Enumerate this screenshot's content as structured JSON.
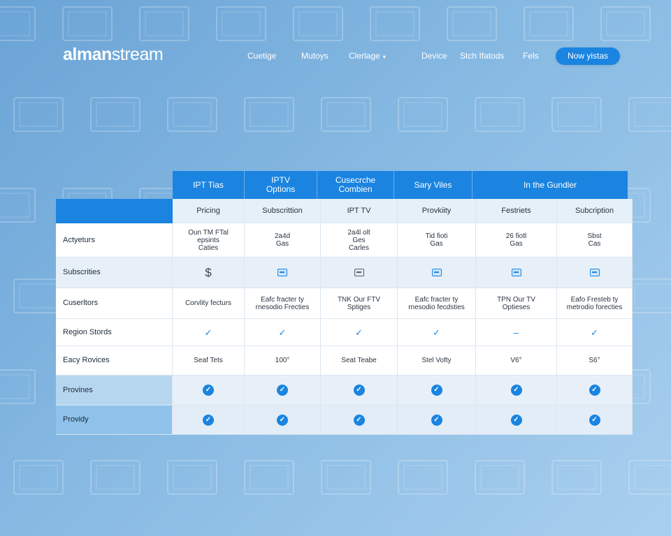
{
  "brand": {
    "logo_bold": "alman",
    "logo_light": "stream"
  },
  "nav": {
    "items": [
      {
        "label": "Cuetige"
      },
      {
        "label": "Mutoys"
      },
      {
        "label": "Clerlage",
        "chevron": "▾"
      },
      {
        "label": "Device"
      },
      {
        "label": "Stch Ifatods"
      },
      {
        "label": "Fels"
      }
    ],
    "cta": "Now yistas"
  },
  "table": {
    "top_headers": [
      "IPT Tias",
      "IPTV\nOptions",
      "Cusecrche\nCombien",
      "Sary Viles",
      "In the Gundler"
    ],
    "columns": [
      "Pricing",
      "Subscrittion",
      "IPT TV",
      "Provkiity",
      "Festriets",
      "Subcription"
    ],
    "rows": [
      {
        "label": "Actyeturs",
        "cells": [
          "Oun TM FTal\nepsints\nCaties",
          "2a4d\nGas",
          "2a4l olt\nGes\nCarles",
          "Tid fioti\nGas",
          "26 fiotl\nGas",
          "Sbst\nCas"
        ]
      },
      {
        "label": "Subscrities",
        "cells": [
          "$",
          "card-icon",
          "card-icon-grey",
          "card-icon",
          "card-icon",
          "card-icon"
        ]
      },
      {
        "label": "Cuserltors",
        "cells": [
          "Corvlity fecturs",
          "Eafc fracter ty\nrnesodio Frecties",
          "TNK Our FTV\nSptiges",
          "Eafc fracter ty\nrnesodio fecdsties",
          "TPN Our TV\nOptieses",
          "Eafo Fresteb ty\nmetrodio forecties"
        ]
      },
      {
        "label": "Region Stords",
        "cells": [
          "✓",
          "✓",
          "✓",
          "✓",
          "–",
          "✓"
        ]
      },
      {
        "label": "Eacy Rovices",
        "cells": [
          "Seaf Tets",
          "100°",
          "Seat Teabe",
          "Stel Vofty",
          "V6°",
          "S6°"
        ]
      },
      {
        "label": "Provines",
        "cells": [
          "check",
          "check",
          "check",
          "check",
          "check",
          "check"
        ]
      },
      {
        "label": "Providy",
        "cells": [
          "check",
          "check",
          "check",
          "check",
          "check",
          "check"
        ]
      }
    ]
  },
  "icons": {
    "price": "dollar-icon",
    "subscription": "credit-card-icon",
    "available": "checkmark-icon",
    "included": "check-circle-icon",
    "not_available": "dash-icon",
    "background": "tv-screen-icon"
  },
  "colors": {
    "accent": "#1a84e0",
    "background_start": "#6aa3d6",
    "background_end": "#a9cfee",
    "row_tint": "#e6f0f9",
    "label_highlight_1": "#b6d6f0",
    "label_highlight_2": "#8fc2ea"
  }
}
